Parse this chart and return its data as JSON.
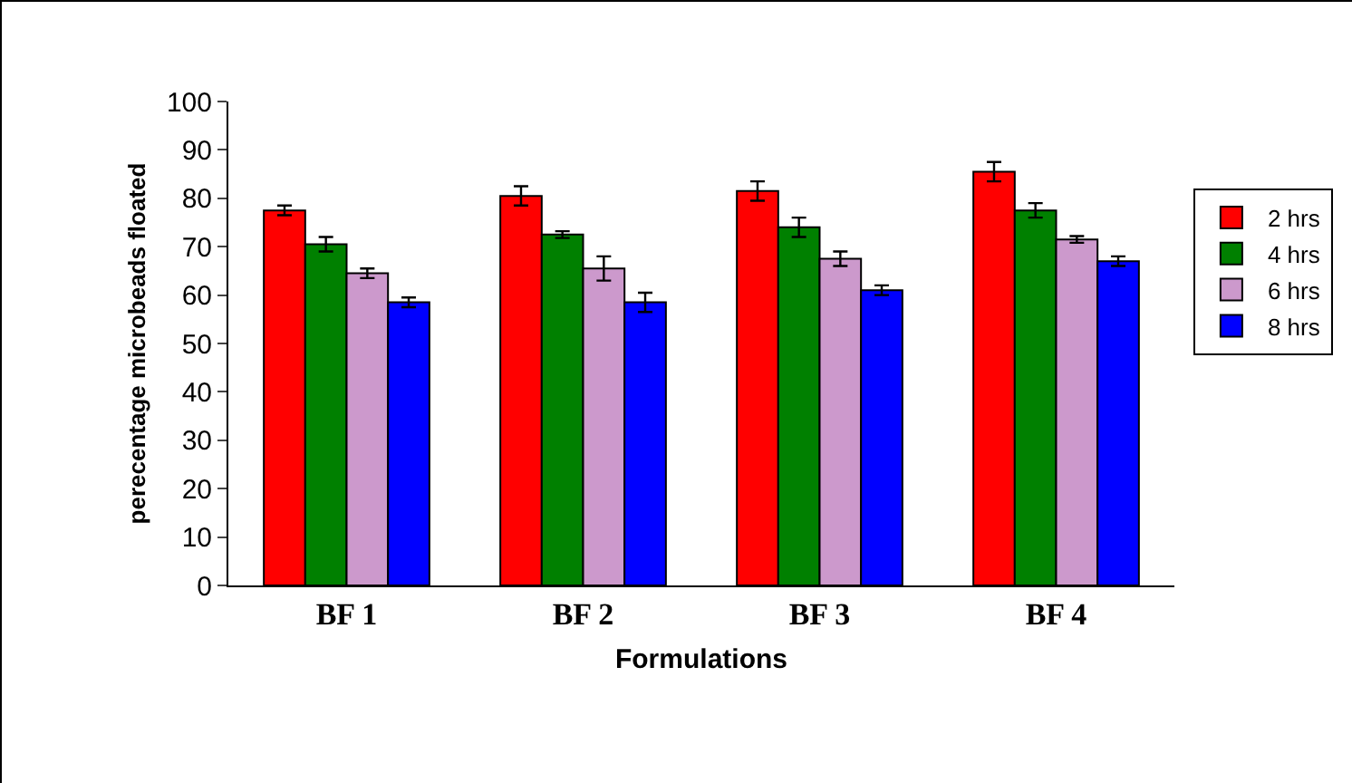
{
  "chart_data": {
    "type": "bar",
    "xlabel": "Formulations",
    "ylabel": "perecentage microbeads floated",
    "categories": [
      "BF 1",
      "BF 2",
      "BF 3",
      "BF 4"
    ],
    "series": [
      {
        "name": "2 hrs",
        "color": "#ff0000",
        "values": [
          77.5,
          80.5,
          81.5,
          85.5
        ],
        "errors": [
          1,
          2,
          2,
          2
        ]
      },
      {
        "name": "4 hrs",
        "color": "#008000",
        "values": [
          70.5,
          72.5,
          74,
          77.5
        ],
        "errors": [
          1.5,
          0.7,
          2,
          1.5
        ]
      },
      {
        "name": "6 hrs",
        "color": "#cc99cc",
        "values": [
          64.5,
          65.5,
          67.5,
          71.5
        ],
        "errors": [
          1,
          2.5,
          1.5,
          0.7
        ]
      },
      {
        "name": "8 hrs",
        "color": "#0000ff",
        "values": [
          58.5,
          58.5,
          61,
          67
        ],
        "errors": [
          1,
          2,
          1,
          1
        ]
      }
    ],
    "ylim": [
      0,
      100
    ],
    "yticks": [
      0,
      10,
      20,
      30,
      40,
      50,
      60,
      70,
      80,
      90,
      100
    ],
    "grid": false,
    "legend": "right"
  }
}
